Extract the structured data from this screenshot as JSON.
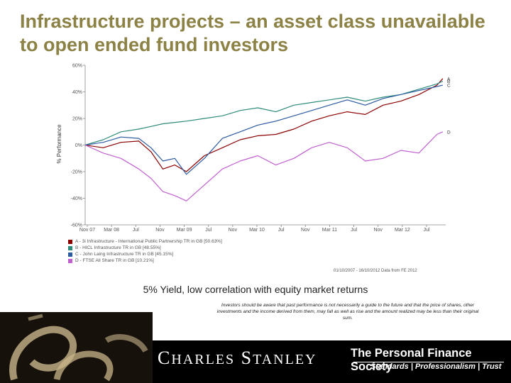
{
  "slide": {
    "title": "Infrastructure projects – an asset class unavailable to open ended fund investors",
    "caption": "5% Yield, low correlation with equity market returns",
    "disclaimer": "Investors should be aware that past performance is not necessarily a guide to the future and that the price of shares, other investments and the income derived from them, may fall as well as rise and the amount realized may be less than their original sum.",
    "source": "01/10/2007 - 16/10/2012 Data from FE 2012"
  },
  "colors": {
    "A": "#8b0000",
    "B": "#2e8b7a",
    "C": "#2c5aa0",
    "D": "#c060d0",
    "title": "#8c8246"
  },
  "chart_data": {
    "type": "line",
    "title": "",
    "xlabel": "",
    "ylabel": "% Performance",
    "ylim": [
      -60,
      60
    ],
    "yticks": [
      "60%",
      "40%",
      "20%",
      "0%",
      "-20%",
      "-40%",
      "-60%"
    ],
    "xticks": [
      "Nov 07",
      "Mar 08",
      "Jul",
      "Nov",
      "Mar 09",
      "Jul",
      "Nov",
      "Mar 10",
      "Jul",
      "Nov",
      "Mar 11",
      "Jul",
      "Nov",
      "Mar 12",
      "Jul"
    ],
    "x_start": "2007-10-01",
    "x_end": "2012-10-16",
    "grid": false,
    "legend_position": "bottom",
    "series": [
      {
        "key": "A",
        "name": "A - 3i Infrastructure - International Public Partnership TR in GB [50.63%]",
        "x": [
          "2007-10",
          "2008-01",
          "2008-04",
          "2008-07",
          "2008-09",
          "2008-11",
          "2009-01",
          "2009-03",
          "2009-06",
          "2009-09",
          "2009-12",
          "2010-03",
          "2010-06",
          "2010-09",
          "2010-12",
          "2011-03",
          "2011-06",
          "2011-09",
          "2011-12",
          "2012-03",
          "2012-06",
          "2012-09",
          "2012-10"
        ],
        "values": [
          0,
          -2,
          2,
          3,
          -5,
          -18,
          -15,
          -20,
          -8,
          -2,
          4,
          7,
          8,
          12,
          18,
          22,
          25,
          23,
          30,
          33,
          38,
          45,
          50
        ]
      },
      {
        "key": "B",
        "name": "B - HICL Infrastructure TR in GB [48.55%]",
        "x": [
          "2007-10",
          "2008-01",
          "2008-04",
          "2008-07",
          "2008-09",
          "2008-11",
          "2009-01",
          "2009-03",
          "2009-06",
          "2009-09",
          "2009-12",
          "2010-03",
          "2010-06",
          "2010-09",
          "2010-12",
          "2011-03",
          "2011-06",
          "2011-09",
          "2011-12",
          "2012-03",
          "2012-06",
          "2012-09",
          "2012-10"
        ],
        "values": [
          0,
          4,
          10,
          12,
          14,
          16,
          17,
          18,
          20,
          22,
          26,
          28,
          25,
          30,
          32,
          34,
          36,
          33,
          36,
          38,
          42,
          46,
          48
        ]
      },
      {
        "key": "C",
        "name": "C - John Laing Infrastructure TR in GB [45.15%]",
        "x": [
          "2007-10",
          "2008-01",
          "2008-04",
          "2008-07",
          "2008-09",
          "2008-11",
          "2009-01",
          "2009-03",
          "2009-06",
          "2009-09",
          "2009-12",
          "2010-03",
          "2010-06",
          "2010-09",
          "2010-12",
          "2011-03",
          "2011-06",
          "2011-09",
          "2011-12",
          "2012-03",
          "2012-06",
          "2012-09",
          "2012-10"
        ],
        "values": [
          0,
          2,
          6,
          5,
          -2,
          -12,
          -10,
          -22,
          -10,
          5,
          10,
          15,
          18,
          22,
          26,
          30,
          34,
          30,
          35,
          38,
          41,
          44,
          45
        ]
      },
      {
        "key": "D",
        "name": "D - FTSE All Share TR in GB [10.21%]",
        "x": [
          "2007-10",
          "2008-01",
          "2008-04",
          "2008-07",
          "2008-09",
          "2008-11",
          "2009-01",
          "2009-03",
          "2009-06",
          "2009-09",
          "2009-12",
          "2010-03",
          "2010-06",
          "2010-09",
          "2010-12",
          "2011-03",
          "2011-06",
          "2011-09",
          "2011-12",
          "2012-03",
          "2012-06",
          "2012-09",
          "2012-10"
        ],
        "values": [
          0,
          -6,
          -10,
          -18,
          -25,
          -35,
          -38,
          -42,
          -30,
          -18,
          -12,
          -8,
          -15,
          -10,
          -2,
          2,
          -2,
          -12,
          -10,
          -4,
          -6,
          8,
          10
        ]
      }
    ]
  }
}
